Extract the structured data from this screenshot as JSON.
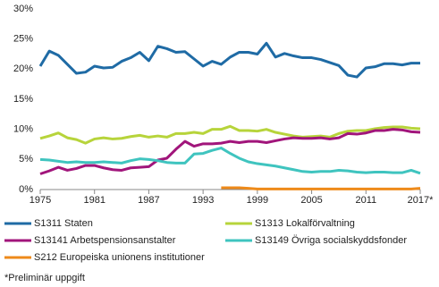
{
  "chart_data": {
    "type": "line",
    "x": [
      1975,
      1976,
      1977,
      1978,
      1979,
      1980,
      1981,
      1982,
      1983,
      1984,
      1985,
      1986,
      1987,
      1988,
      1989,
      1990,
      1991,
      1992,
      1993,
      1994,
      1995,
      1996,
      1997,
      1998,
      1999,
      2000,
      2001,
      2002,
      2003,
      2004,
      2005,
      2006,
      2007,
      2008,
      2009,
      2010,
      2011,
      2012,
      2013,
      2014,
      2015,
      2016,
      2017
    ],
    "xlim": [
      1975,
      2017
    ],
    "xticks": [
      1975,
      1981,
      1987,
      1993,
      1999,
      2005,
      2011,
      {
        "value": 2017,
        "label": "2017*"
      }
    ],
    "ylim": [
      0,
      30
    ],
    "yticks": [
      {
        "value": 0,
        "label": "0%"
      },
      {
        "value": 5,
        "label": "5%"
      },
      {
        "value": 10,
        "label": "10%"
      },
      {
        "value": 15,
        "label": "15%"
      },
      {
        "value": 20,
        "label": "20%"
      },
      {
        "value": 25,
        "label": "25%"
      },
      {
        "value": 30,
        "label": "30%"
      }
    ],
    "grid": false,
    "legend": "bottom",
    "series": [
      {
        "name": "S1311 Staten",
        "color": "#1f6ba5",
        "values": [
          20.5,
          23.0,
          22.3,
          20.8,
          19.3,
          19.5,
          20.5,
          20.2,
          20.3,
          21.3,
          21.9,
          22.8,
          21.4,
          23.8,
          23.4,
          22.8,
          22.9,
          21.7,
          20.5,
          21.3,
          20.8,
          22.0,
          22.8,
          22.8,
          22.5,
          24.3,
          22.0,
          22.6,
          22.2,
          21.9,
          21.9,
          21.6,
          21.1,
          20.6,
          19.0,
          18.7,
          20.2,
          20.4,
          20.9,
          20.9,
          20.7,
          21.0,
          21.0
        ]
      },
      {
        "name": "S1313 Lokalförvaltning",
        "color": "#b7d43b",
        "values": [
          8.5,
          8.9,
          9.4,
          8.6,
          8.3,
          7.7,
          8.4,
          8.6,
          8.4,
          8.5,
          8.8,
          9.0,
          8.7,
          8.9,
          8.7,
          9.3,
          9.3,
          9.5,
          9.3,
          10.0,
          10.0,
          10.5,
          9.8,
          9.8,
          9.7,
          10.0,
          9.5,
          9.2,
          8.9,
          8.7,
          8.8,
          8.9,
          8.7,
          9.3,
          9.7,
          9.8,
          9.8,
          10.1,
          10.3,
          10.4,
          10.4,
          10.2,
          10.1
        ]
      },
      {
        "name": "S13141 Arbetspensionsanstalter",
        "color": "#a1157b",
        "values": [
          2.6,
          3.1,
          3.7,
          3.2,
          3.5,
          4.0,
          4.0,
          3.6,
          3.3,
          3.2,
          3.6,
          3.7,
          3.8,
          4.9,
          5.2,
          6.7,
          8.0,
          7.2,
          7.6,
          7.6,
          7.7,
          8.0,
          7.8,
          8.0,
          8.0,
          7.8,
          8.1,
          8.4,
          8.6,
          8.5,
          8.5,
          8.6,
          8.4,
          8.6,
          9.3,
          9.2,
          9.4,
          9.8,
          9.8,
          10.0,
          9.9,
          9.6,
          9.5
        ]
      },
      {
        "name": "S13149 Övriga socialskyddsfonder",
        "color": "#3fc4bf",
        "values": [
          5.0,
          4.9,
          4.7,
          4.5,
          4.6,
          4.5,
          4.5,
          4.6,
          4.5,
          4.4,
          4.8,
          5.1,
          5.0,
          4.8,
          4.5,
          4.4,
          4.4,
          5.9,
          6.0,
          6.5,
          6.9,
          6.0,
          5.2,
          4.6,
          4.3,
          4.1,
          3.9,
          3.6,
          3.3,
          3.0,
          2.9,
          3.0,
          3.0,
          3.2,
          3.1,
          2.9,
          2.8,
          2.9,
          2.9,
          2.8,
          2.8,
          3.2,
          2.7
        ]
      },
      {
        "name": "S212 Europeiska unionens institutioner",
        "color": "#ee8a1a",
        "values": [
          null,
          null,
          null,
          null,
          null,
          null,
          null,
          null,
          null,
          null,
          null,
          null,
          null,
          null,
          null,
          null,
          null,
          null,
          null,
          null,
          0.3,
          0.3,
          0.3,
          0.2,
          0.1,
          0.1,
          0.1,
          0.1,
          0.1,
          0.1,
          0.1,
          0.1,
          0.1,
          0.1,
          0.1,
          0.1,
          0.1,
          0.1,
          0.1,
          0.1,
          0.1,
          0.1,
          0.2
        ]
      }
    ],
    "footnote": "*Preliminär uppgift"
  }
}
